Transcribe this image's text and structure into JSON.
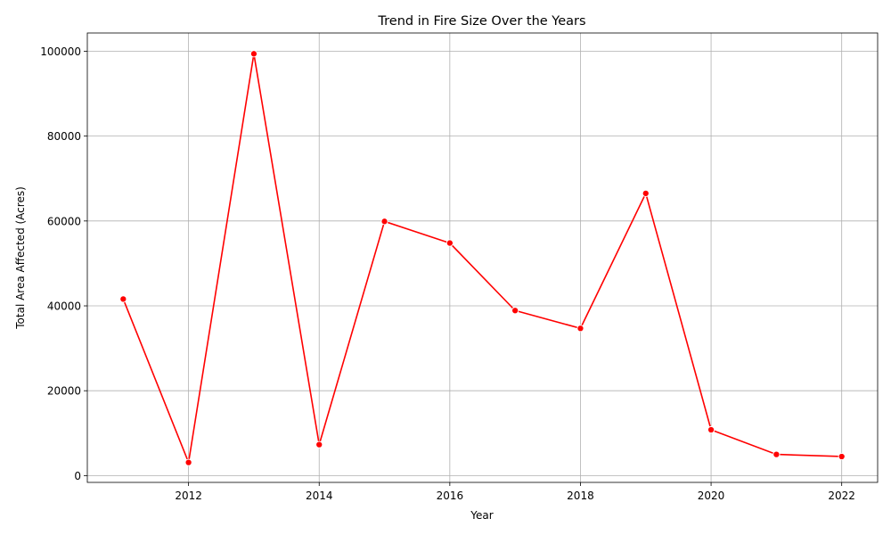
{
  "chart_data": {
    "type": "line",
    "title": "Trend in Fire Size Over the Years",
    "xlabel": "Year",
    "ylabel": "Total Area Affected (Acres)",
    "x": [
      2011,
      2012,
      2013,
      2014,
      2015,
      2016,
      2017,
      2018,
      2019,
      2020,
      2021,
      2022
    ],
    "series": [
      {
        "values": [
          41600,
          3100,
          99400,
          7300,
          59900,
          54800,
          38900,
          34700,
          66500,
          10800,
          5000,
          4500
        ]
      }
    ],
    "xlim": [
      2010.45,
      2022.55
    ],
    "ylim": [
      -1600,
      104300
    ],
    "xticks": [
      "2012",
      "2014",
      "2016",
      "2018",
      "2020",
      "2022"
    ],
    "yticks": [
      "0",
      "20000",
      "40000",
      "60000",
      "80000",
      "100000"
    ],
    "grid": true,
    "legend": "none",
    "colors": {
      "line": "#ff0000",
      "marker": "#ff0000",
      "grid": "#b0b0b0",
      "axes": "#000000"
    }
  }
}
